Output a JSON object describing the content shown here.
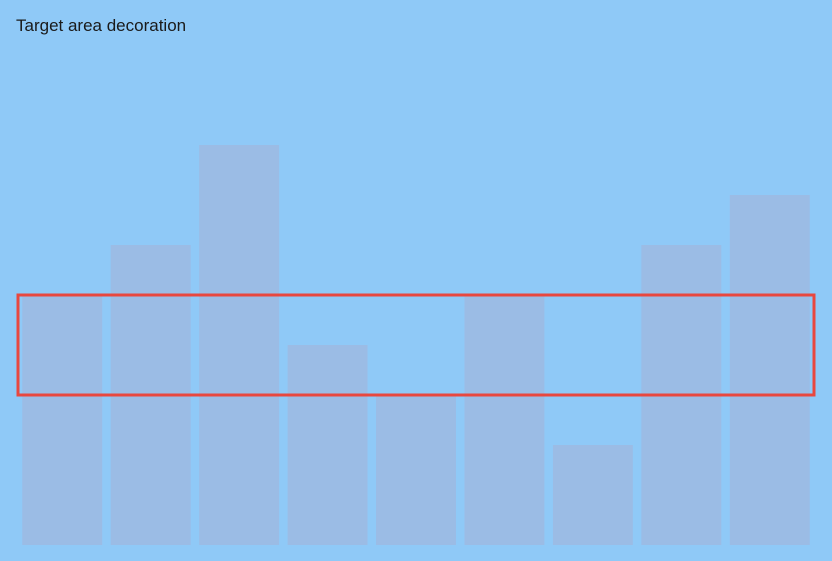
{
  "chart_data": {
    "type": "bar",
    "title": "Target area decoration",
    "xlabel": "",
    "ylabel": "",
    "categories": [
      "",
      "",
      "",
      "",
      "",
      "",
      "",
      "",
      ""
    ],
    "values": [
      250,
      300,
      400,
      200,
      150,
      250,
      100,
      300,
      350
    ],
    "ylim": [
      0,
      400
    ],
    "target_band": [
      150,
      250
    ],
    "grid": false,
    "colors": {
      "background": "#8fc9f7",
      "bar": "#9bbce5",
      "target_outline": "#e8473f",
      "title": "#1a1a1a"
    }
  }
}
